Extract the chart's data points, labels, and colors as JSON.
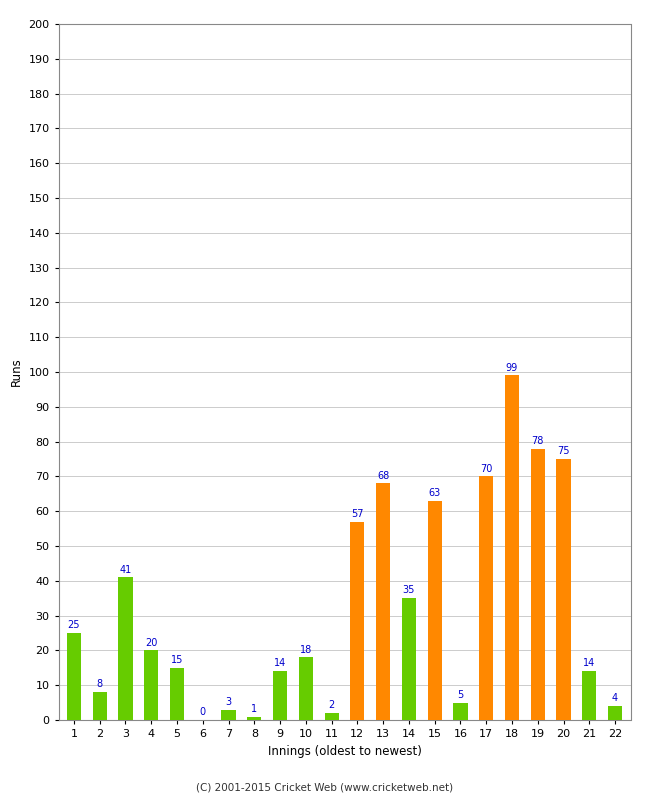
{
  "xlabel": "Innings (oldest to newest)",
  "ylabel": "Runs",
  "ylim": [
    0,
    200
  ],
  "yticks": [
    0,
    10,
    20,
    30,
    40,
    50,
    60,
    70,
    80,
    90,
    100,
    110,
    120,
    130,
    140,
    150,
    160,
    170,
    180,
    190,
    200
  ],
  "innings": [
    1,
    2,
    3,
    4,
    5,
    6,
    7,
    8,
    9,
    10,
    11,
    12,
    13,
    14,
    15,
    16,
    17,
    18,
    19,
    20,
    21,
    22
  ],
  "values": [
    25,
    8,
    41,
    20,
    15,
    0,
    3,
    1,
    14,
    18,
    2,
    57,
    68,
    35,
    63,
    5,
    70,
    99,
    78,
    75,
    14,
    4
  ],
  "colors": [
    "#66cc00",
    "#66cc00",
    "#66cc00",
    "#66cc00",
    "#66cc00",
    "#66cc00",
    "#66cc00",
    "#66cc00",
    "#66cc00",
    "#66cc00",
    "#66cc00",
    "#ff8800",
    "#ff8800",
    "#66cc00",
    "#ff8800",
    "#66cc00",
    "#ff8800",
    "#ff8800",
    "#ff8800",
    "#ff8800",
    "#66cc00",
    "#66cc00"
  ],
  "label_color": "#0000cc",
  "background_color": "#ffffff",
  "grid_color": "#cccccc",
  "footer": "(C) 2001-2015 Cricket Web (www.cricketweb.net)",
  "bar_width": 0.55
}
